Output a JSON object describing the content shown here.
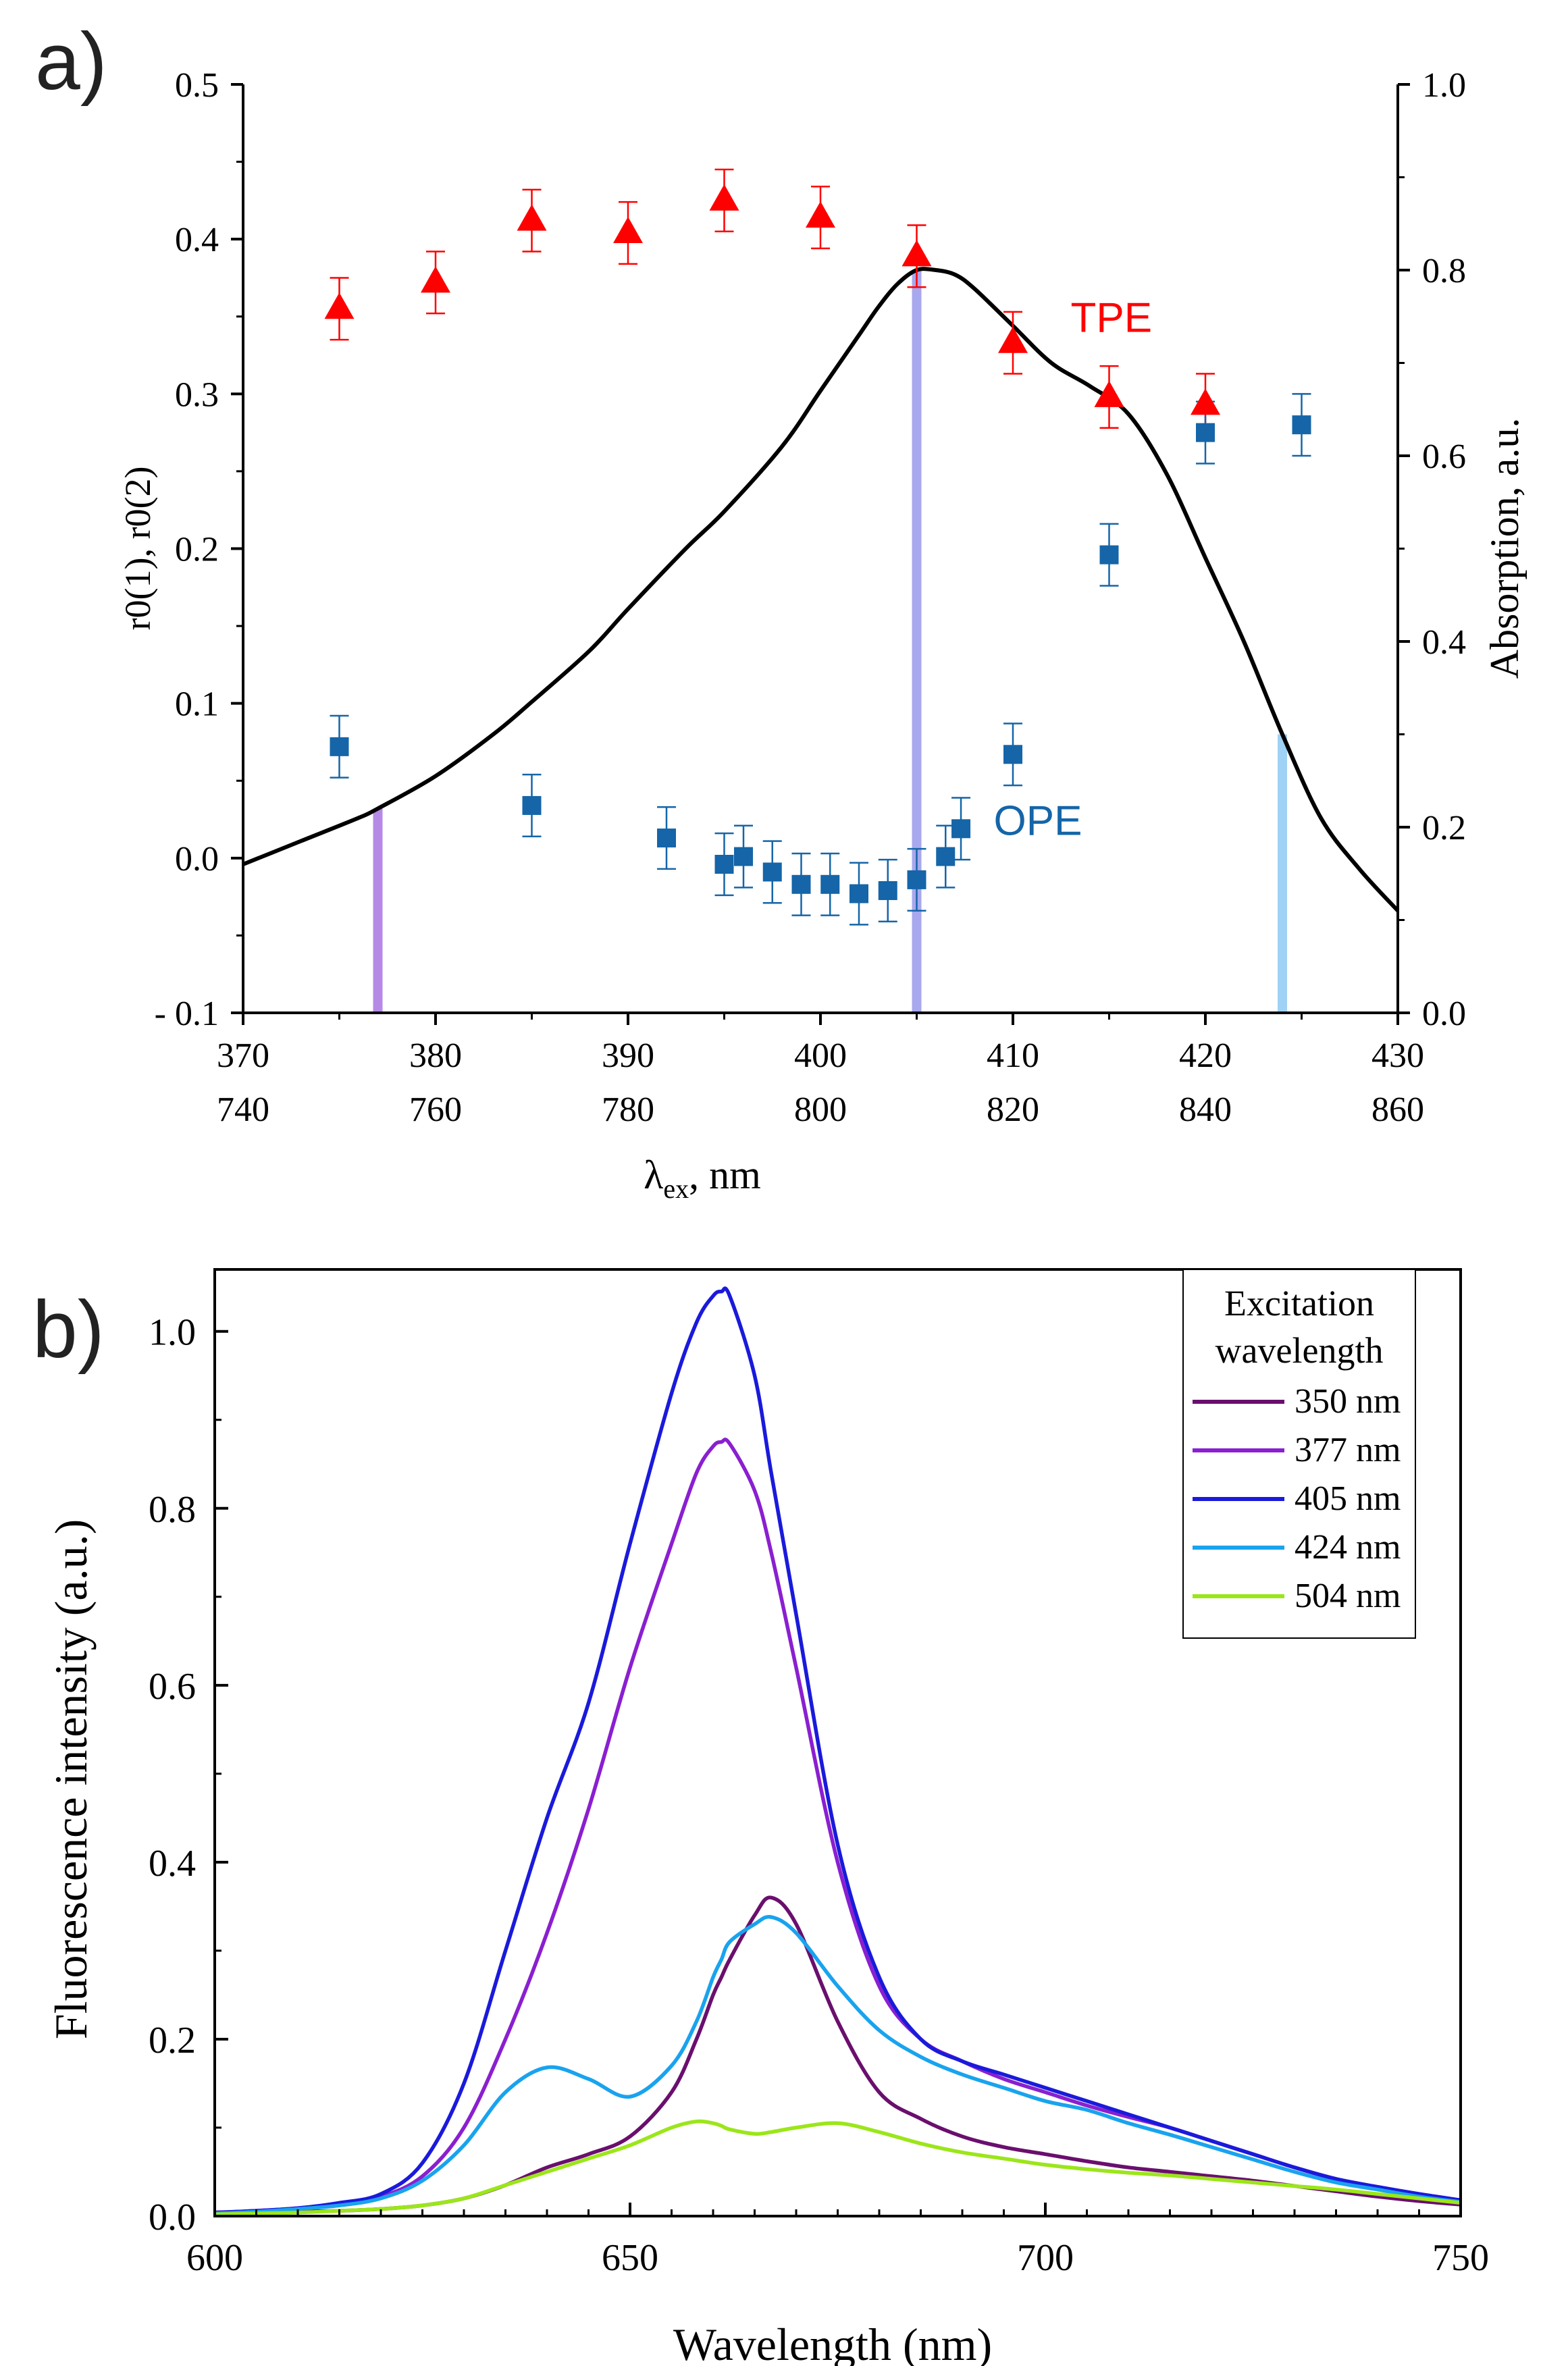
{
  "panels": {
    "a": {
      "label": "a)"
    },
    "b": {
      "label": "b)"
    }
  },
  "chart_data": [
    {
      "id": "panel-a",
      "type": "scatter",
      "xlabel": "λex, nm",
      "xlabel_main": "λ",
      "xlabel_sub": "ex",
      "xlabel_suffix": ", nm",
      "ylabel_left": "r0(1), r0(2)",
      "ylabel_right": "Absorption, a.u.",
      "xlim": [
        370,
        430
      ],
      "ylim_left": [
        -0.1,
        0.5
      ],
      "ylim_right": [
        0.0,
        1.0
      ],
      "x_ticks": [
        370,
        380,
        390,
        400,
        410,
        420,
        430
      ],
      "x_tick_labels": [
        "370",
        "380",
        "390",
        "400",
        "410",
        "420",
        "430"
      ],
      "x2_tick_labels": [
        "740",
        "760",
        "780",
        "800",
        "820",
        "840",
        "860"
      ],
      "y_left_ticks": [
        -0.1,
        0.0,
        0.1,
        0.2,
        0.3,
        0.4,
        0.5
      ],
      "y_left_tick_labels": [
        "- 0.1",
        "0.0",
        "0.1",
        "0.2",
        "0.3",
        "0.4",
        "0.5"
      ],
      "y_right_ticks": [
        0.0,
        0.2,
        0.4,
        0.6,
        0.8,
        1.0
      ],
      "y_right_tick_labels": [
        "0.0",
        "0.2",
        "0.4",
        "0.6",
        "0.8",
        "1.0"
      ],
      "series": [
        {
          "name": "TPE",
          "marker": "triangle",
          "color": "#ff0000",
          "x": [
            375,
            380,
            385,
            390,
            395,
            400,
            405,
            410,
            415,
            420
          ],
          "y": [
            0.355,
            0.372,
            0.412,
            0.404,
            0.425,
            0.414,
            0.389,
            0.333,
            0.298,
            0.293
          ],
          "err": [
            0.02,
            0.02,
            0.02,
            0.02,
            0.02,
            0.02,
            0.02,
            0.02,
            0.02,
            0.02
          ]
        },
        {
          "name": "OPE",
          "marker": "square",
          "color": "#1565a8",
          "x": [
            375,
            385,
            392,
            395,
            396,
            397.5,
            399,
            400.5,
            402,
            403.5,
            405,
            406.5,
            407.3,
            410,
            415,
            420,
            425
          ],
          "y": [
            0.072,
            0.034,
            0.013,
            -0.004,
            0.001,
            -0.009,
            -0.017,
            -0.017,
            -0.023,
            -0.021,
            -0.014,
            0.001,
            0.019,
            0.067,
            0.196,
            0.275,
            0.28
          ],
          "err": [
            0.02,
            0.02,
            0.02,
            0.02,
            0.02,
            0.02,
            0.02,
            0.02,
            0.02,
            0.02,
            0.02,
            0.02,
            0.02,
            0.02,
            0.02,
            0.02,
            0.02
          ]
        },
        {
          "name": "Absorption",
          "marker": "line",
          "color": "#000000",
          "axis": "right",
          "x": [
            370,
            373,
            376,
            377,
            380,
            383,
            385,
            388,
            390,
            393,
            395,
            398,
            400,
            402,
            403,
            404,
            405,
            406,
            407,
            408,
            410,
            412,
            414,
            416,
            418,
            420,
            422,
            424,
            426,
            428,
            430
          ],
          "y": [
            0.16,
            0.185,
            0.21,
            0.22,
            0.255,
            0.3,
            0.335,
            0.39,
            0.435,
            0.5,
            0.54,
            0.61,
            0.67,
            0.73,
            0.76,
            0.785,
            0.8,
            0.8,
            0.795,
            0.78,
            0.74,
            0.7,
            0.675,
            0.645,
            0.58,
            0.49,
            0.4,
            0.3,
            0.21,
            0.155,
            0.11
          ]
        }
      ],
      "vertical_bars": [
        {
          "x": 377,
          "color": "#b58ae6",
          "top_right_value": 0.22
        },
        {
          "x": 405,
          "color": "#a8a8ee",
          "top_right_value": 0.8
        },
        {
          "x": 424,
          "color": "#9fd2f5",
          "top_right_value": 0.3
        }
      ],
      "annotations": [
        {
          "text": "TPE",
          "color": "#ff0000",
          "x": 413,
          "y": 0.34
        },
        {
          "text": "OPE",
          "color": "#1565a8",
          "x": 409,
          "y": 0.015
        }
      ]
    },
    {
      "id": "panel-b",
      "type": "line",
      "xlabel": "Wavelength (nm)",
      "ylabel": "Fluorescence intensity (a.u.)",
      "xlim": [
        600,
        750
      ],
      "ylim": [
        0.0,
        1.07
      ],
      "x_ticks": [
        600,
        650,
        700,
        750
      ],
      "x_tick_labels": [
        "600",
        "650",
        "700",
        "750"
      ],
      "y_ticks": [
        0.0,
        0.2,
        0.4,
        0.6,
        0.8,
        1.0
      ],
      "y_tick_labels": [
        "0.0",
        "0.2",
        "0.4",
        "0.6",
        "0.8",
        "1.0"
      ],
      "legend_title_lines": [
        "Excitation",
        "wavelength"
      ],
      "legend_position": "top-right",
      "x": [
        600,
        605,
        610,
        615,
        620,
        625,
        630,
        635,
        640,
        645,
        650,
        655,
        658,
        660,
        661,
        662,
        665,
        667,
        670,
        675,
        680,
        685,
        690,
        695,
        700,
        705,
        710,
        715,
        720,
        725,
        730,
        735,
        740,
        745,
        750
      ],
      "series": [
        {
          "name": "350 nm",
          "color": "#6a0f6e",
          "values": [
            0.003,
            0.004,
            0.005,
            0.006,
            0.008,
            0.012,
            0.02,
            0.035,
            0.055,
            0.07,
            0.09,
            0.14,
            0.2,
            0.25,
            0.27,
            0.29,
            0.34,
            0.36,
            0.33,
            0.22,
            0.14,
            0.11,
            0.09,
            0.078,
            0.07,
            0.062,
            0.055,
            0.05,
            0.045,
            0.04,
            0.034,
            0.028,
            0.022,
            0.017,
            0.013
          ]
        },
        {
          "name": "377 nm",
          "color": "#8a1fd0",
          "values": [
            0.004,
            0.006,
            0.009,
            0.014,
            0.022,
            0.045,
            0.1,
            0.2,
            0.32,
            0.46,
            0.62,
            0.76,
            0.84,
            0.87,
            0.875,
            0.873,
            0.82,
            0.75,
            0.62,
            0.4,
            0.26,
            0.2,
            0.175,
            0.155,
            0.14,
            0.125,
            0.112,
            0.1,
            0.085,
            0.07,
            0.055,
            0.042,
            0.033,
            0.025,
            0.018
          ]
        },
        {
          "name": "405 nm",
          "color": "#1a1adb",
          "values": [
            0.004,
            0.006,
            0.009,
            0.015,
            0.025,
            0.06,
            0.15,
            0.3,
            0.45,
            0.58,
            0.76,
            0.93,
            1.01,
            1.04,
            1.045,
            1.04,
            0.95,
            0.84,
            0.68,
            0.42,
            0.27,
            0.2,
            0.175,
            0.16,
            0.145,
            0.13,
            0.115,
            0.1,
            0.085,
            0.07,
            0.055,
            0.042,
            0.033,
            0.025,
            0.018
          ]
        },
        {
          "name": "424 nm",
          "color": "#19a3ee",
          "values": [
            0.003,
            0.005,
            0.008,
            0.012,
            0.02,
            0.04,
            0.08,
            0.14,
            0.168,
            0.155,
            0.135,
            0.17,
            0.22,
            0.27,
            0.29,
            0.31,
            0.33,
            0.338,
            0.32,
            0.26,
            0.21,
            0.18,
            0.16,
            0.145,
            0.13,
            0.12,
            0.105,
            0.092,
            0.078,
            0.064,
            0.05,
            0.038,
            0.03,
            0.022,
            0.016
          ]
        },
        {
          "name": "504 nm",
          "color": "#9be61a",
          "values": [
            0.002,
            0.003,
            0.004,
            0.006,
            0.008,
            0.012,
            0.02,
            0.035,
            0.05,
            0.065,
            0.08,
            0.1,
            0.107,
            0.105,
            0.102,
            0.098,
            0.093,
            0.095,
            0.1,
            0.105,
            0.095,
            0.082,
            0.072,
            0.065,
            0.058,
            0.053,
            0.049,
            0.046,
            0.042,
            0.038,
            0.034,
            0.03,
            0.025,
            0.02,
            0.015
          ]
        }
      ]
    }
  ]
}
